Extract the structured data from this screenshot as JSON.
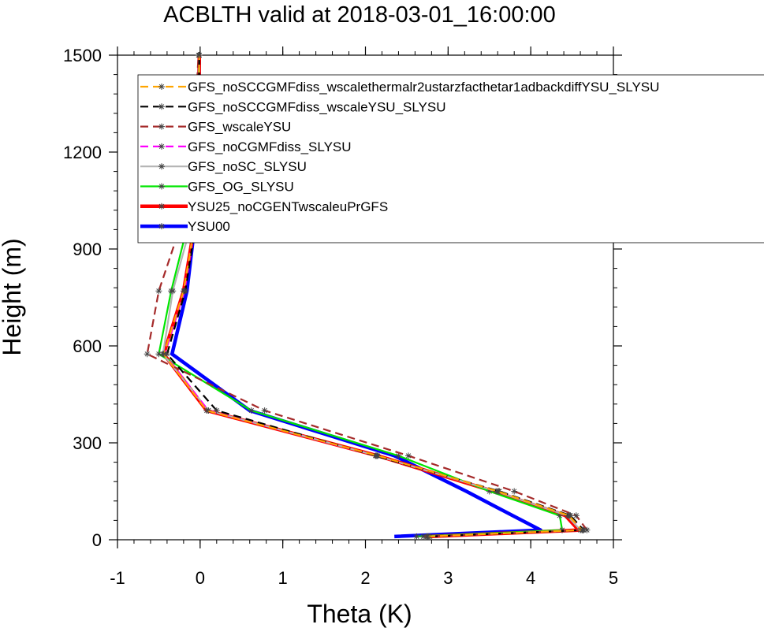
{
  "chart_data": {
    "type": "line",
    "title": "ACBLTH valid at 2018-03-01_16:00:00",
    "xlabel": "Theta (K)",
    "ylabel": "Height (m)",
    "xlim": [
      -1,
      5
    ],
    "ylim": [
      0,
      1500
    ],
    "xticks": [
      -1,
      0,
      1,
      2,
      3,
      4,
      5
    ],
    "yticks": [
      0,
      300,
      600,
      900,
      1200,
      1500
    ],
    "xtick_labels": [
      "-1",
      "0",
      "1",
      "2",
      "3",
      "4",
      "5"
    ],
    "ytick_labels": [
      "0",
      "300",
      "600",
      "900",
      "1200",
      "1500"
    ],
    "grid": false,
    "legend_position": "top-right",
    "series": [
      {
        "name": "GFS_noSCCGMFdiss_wscalethermalr2ustarzfacthetar1adbackdiffYSU_SLYSU",
        "color": "#ffa500",
        "dash": "dashed",
        "marker": "asterisk",
        "y": [
          10,
          30,
          75,
          150,
          260,
          400,
          575,
          770,
          985,
          1200,
          1500
        ],
        "x": [
          2.75,
          4.62,
          4.46,
          3.6,
          2.15,
          0.08,
          -0.44,
          -0.2,
          -0.06,
          -0.02,
          -0.01
        ]
      },
      {
        "name": "GFS_noSCCGMFdiss_wscaleYSU_SLYSU",
        "color": "#000000",
        "dash": "dashed",
        "marker": "asterisk",
        "y": [
          10,
          30,
          75,
          150,
          260,
          400,
          575,
          770,
          985,
          1200,
          1500
        ],
        "x": [
          2.78,
          4.64,
          4.48,
          3.62,
          2.12,
          0.2,
          -0.4,
          -0.18,
          -0.05,
          -0.02,
          -0.01
        ]
      },
      {
        "name": "GFS_wscaleYSU",
        "color": "#a52a2a",
        "dash": "dashed",
        "marker": "asterisk",
        "y": [
          10,
          30,
          75,
          150,
          260,
          400,
          575,
          770,
          985,
          1200,
          1500
        ],
        "x": [
          2.7,
          4.68,
          4.55,
          3.8,
          2.52,
          0.78,
          -0.64,
          -0.5,
          -0.22,
          -0.08,
          -0.02
        ]
      },
      {
        "name": "GFS_noCGMFdiss_SLYSU",
        "color": "#ff00ff",
        "dash": "dashed",
        "marker": "asterisk",
        "y": [
          10,
          30,
          75,
          150,
          260,
          400,
          575,
          770,
          985,
          1200,
          1500
        ],
        "x": [
          2.76,
          4.63,
          4.47,
          3.61,
          2.13,
          0.1,
          -0.43,
          -0.19,
          -0.06,
          -0.02,
          -0.01
        ]
      },
      {
        "name": "GFS_noSC_SLYSU",
        "color": "#b4b4b4",
        "dash": "solid",
        "marker": "asterisk",
        "y": [
          10,
          30,
          75,
          150,
          260,
          400,
          575,
          770,
          985,
          1200,
          1500
        ],
        "x": [
          2.74,
          4.6,
          4.44,
          3.58,
          2.14,
          0.1,
          -0.45,
          -0.33,
          -0.1,
          -0.03,
          -0.01
        ]
      },
      {
        "name": "GFS_OG_SLYSU",
        "color": "#00e600",
        "dash": "solid",
        "marker": "asterisk",
        "y": [
          10,
          30,
          75,
          150,
          260,
          400,
          575,
          770,
          985,
          1200,
          1500
        ],
        "x": [
          2.62,
          4.38,
          4.35,
          3.5,
          2.4,
          0.62,
          -0.5,
          -0.35,
          -0.14,
          -0.05,
          -0.01
        ]
      },
      {
        "name": "YSU25_noCGENTwscaleuPrGFS",
        "color": "#ff0000",
        "dash": "solid",
        "marker": "none",
        "y": [
          10,
          30,
          75,
          150,
          260,
          400,
          575,
          770,
          985,
          1200,
          1500
        ],
        "x": [
          2.77,
          4.58,
          4.42,
          3.55,
          2.15,
          0.08,
          -0.44,
          -0.2,
          -0.06,
          -0.02,
          -0.01
        ]
      },
      {
        "name": "YSU00",
        "color": "#0000ff",
        "dash": "solid",
        "marker": "none",
        "y": [
          10,
          30,
          75,
          150,
          260,
          400,
          575,
          770,
          985,
          1200,
          1500
        ],
        "x": [
          2.35,
          4.12,
          3.78,
          3.22,
          2.35,
          0.6,
          -0.34,
          -0.16,
          -0.06,
          -0.02,
          -0.01
        ]
      }
    ]
  }
}
